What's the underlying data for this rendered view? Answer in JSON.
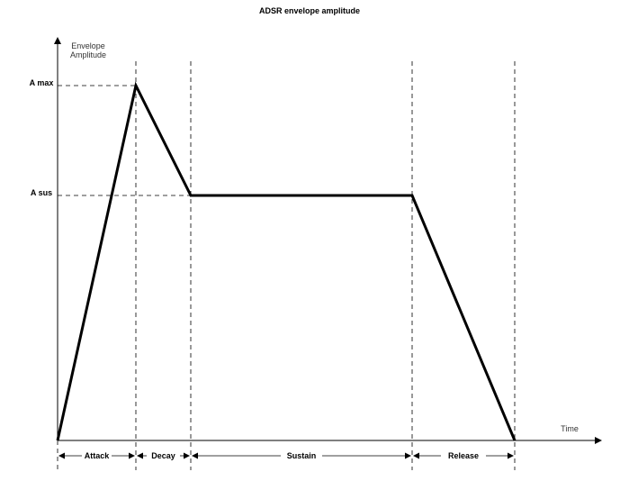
{
  "title": "ADSR envelope amplitude",
  "y_axis_label": [
    "Envelope",
    "Amplitude"
  ],
  "x_axis_label": "Time",
  "levels": {
    "max": "A max",
    "sus": "A sus"
  },
  "phases": [
    "Attack",
    "Decay",
    "Sustain",
    "Release"
  ]
}
